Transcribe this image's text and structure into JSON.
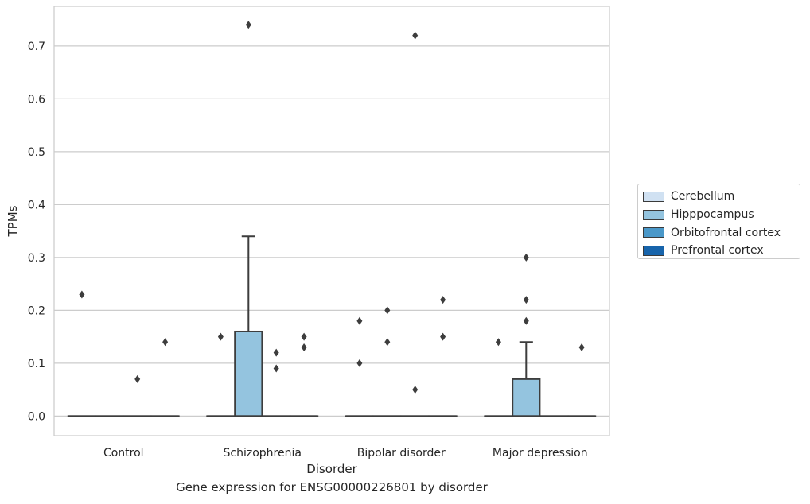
{
  "caption": "Gene expression for ENSG00000226801 by disorder",
  "chart_data": {
    "type": "box",
    "xlabel": "Disorder",
    "ylabel": "TPMs",
    "ylim": [
      -0.037,
      0.775
    ],
    "yticks": [
      0.0,
      0.1,
      0.2,
      0.3,
      0.4,
      0.5,
      0.6,
      0.7
    ],
    "ytick_labels": [
      "0.0",
      "0.1",
      "0.2",
      "0.3",
      "0.4",
      "0.5",
      "0.6",
      "0.7"
    ],
    "grid": "horizontal",
    "legend_placement": "right",
    "categories": [
      "Control",
      "Schizophrenia",
      "Bipolar disorder",
      "Major depression"
    ],
    "series": [
      {
        "name": "Cerebellum",
        "color": "#d0e1f2",
        "boxes": [
          {
            "category": "Control",
            "q1": 0,
            "median": 0,
            "q3": 0,
            "whisker_low": 0,
            "whisker_high": 0,
            "outliers": [
              0.23
            ]
          },
          {
            "category": "Schizophrenia",
            "q1": 0,
            "median": 0,
            "q3": 0,
            "whisker_low": 0,
            "whisker_high": 0,
            "outliers": [
              0.15
            ]
          },
          {
            "category": "Bipolar disorder",
            "q1": 0,
            "median": 0,
            "q3": 0,
            "whisker_low": 0,
            "whisker_high": 0,
            "outliers": [
              0.18,
              0.1
            ]
          },
          {
            "category": "Major depression",
            "q1": 0,
            "median": 0,
            "q3": 0,
            "whisker_low": 0,
            "whisker_high": 0,
            "outliers": [
              0.14
            ]
          }
        ]
      },
      {
        "name": "Hipppocampus",
        "color": "#94c4df",
        "boxes": [
          {
            "category": "Control",
            "q1": 0,
            "median": 0,
            "q3": 0,
            "whisker_low": 0,
            "whisker_high": 0,
            "outliers": []
          },
          {
            "category": "Schizophrenia",
            "q1": 0,
            "median": 0,
            "q3": 0.16,
            "whisker_low": 0,
            "whisker_high": 0.34,
            "outliers": [
              0.74
            ]
          },
          {
            "category": "Bipolar disorder",
            "q1": 0,
            "median": 0,
            "q3": 0,
            "whisker_low": 0,
            "whisker_high": 0,
            "outliers": [
              0.2,
              0.14
            ]
          },
          {
            "category": "Major depression",
            "q1": 0,
            "median": 0,
            "q3": 0.07,
            "whisker_low": 0,
            "whisker_high": 0.14,
            "outliers": [
              0.3,
              0.22,
              0.18
            ]
          }
        ]
      },
      {
        "name": "Orbitofrontal cortex",
        "color": "#4a98c9",
        "boxes": [
          {
            "category": "Control",
            "q1": 0,
            "median": 0,
            "q3": 0,
            "whisker_low": 0,
            "whisker_high": 0,
            "outliers": [
              0.07
            ]
          },
          {
            "category": "Schizophrenia",
            "q1": 0,
            "median": 0,
            "q3": 0,
            "whisker_low": 0,
            "whisker_high": 0,
            "outliers": [
              0.12,
              0.09
            ]
          },
          {
            "category": "Bipolar disorder",
            "q1": 0,
            "median": 0,
            "q3": 0,
            "whisker_low": 0,
            "whisker_high": 0,
            "outliers": [
              0.72,
              0.05
            ]
          },
          {
            "category": "Major depression",
            "q1": 0,
            "median": 0,
            "q3": 0,
            "whisker_low": 0,
            "whisker_high": 0,
            "outliers": []
          }
        ]
      },
      {
        "name": "Prefrontal cortex",
        "color": "#1764ab",
        "boxes": [
          {
            "category": "Control",
            "q1": 0,
            "median": 0,
            "q3": 0,
            "whisker_low": 0,
            "whisker_high": 0,
            "outliers": [
              0.14
            ]
          },
          {
            "category": "Schizophrenia",
            "q1": 0,
            "median": 0,
            "q3": 0,
            "whisker_low": 0,
            "whisker_high": 0,
            "outliers": [
              0.15,
              0.13
            ]
          },
          {
            "category": "Bipolar disorder",
            "q1": 0,
            "median": 0,
            "q3": 0,
            "whisker_low": 0,
            "whisker_high": 0,
            "outliers": [
              0.22,
              0.15
            ]
          },
          {
            "category": "Major depression",
            "q1": 0,
            "median": 0,
            "q3": 0,
            "whisker_low": 0,
            "whisker_high": 0,
            "outliers": [
              0.13
            ]
          }
        ]
      }
    ]
  }
}
